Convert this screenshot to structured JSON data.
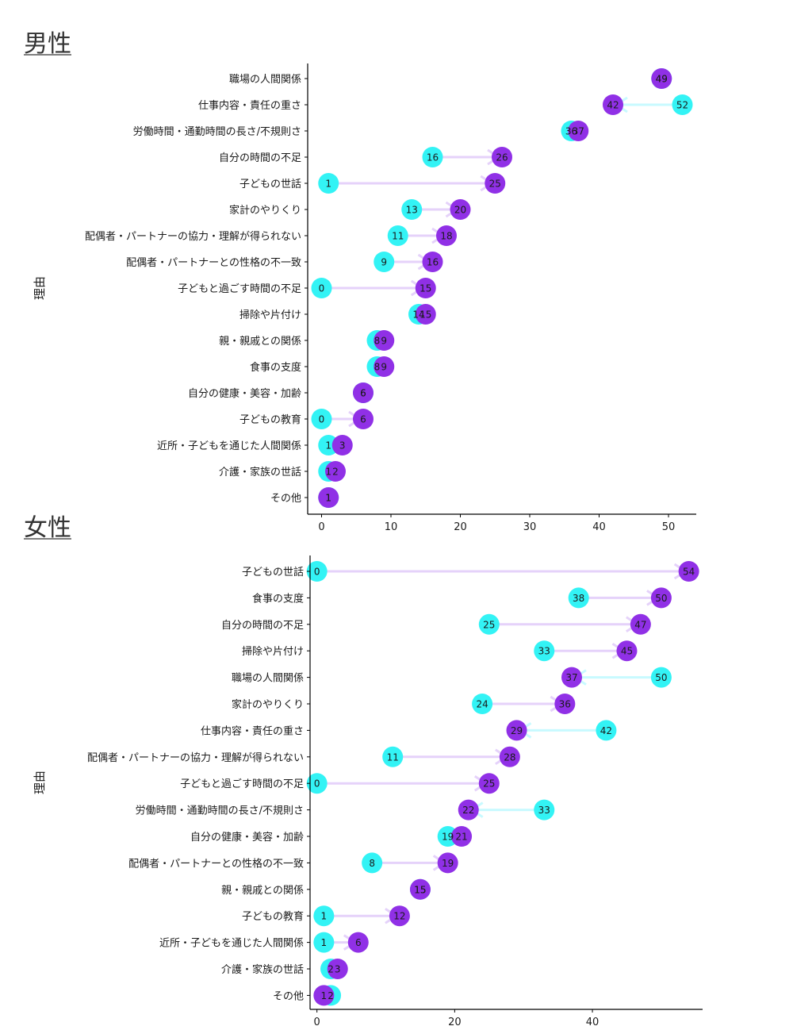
{
  "colors": {
    "before": "#33F3F5",
    "after": "#9030E6",
    "line_before_greater": "#C8FAFF",
    "line_after_greater": "#E5D2FA",
    "axis": "#000000"
  },
  "chart_data": [
    {
      "type": "dumbbell",
      "title": "男性",
      "ylabel": "理由",
      "xlabel": "",
      "xlim": [
        -2,
        54
      ],
      "xticks": [
        0,
        10,
        20,
        30,
        40,
        50
      ],
      "grid": false,
      "categories": [
        "職場の人間関係",
        "仕事内容・責任の重さ",
        "労働時間・通勤時間の長さ/不規則さ",
        "自分の時間の不足",
        "子どもの世話",
        "家計のやりくり",
        "配偶者・パートナーの協力・理解が得られない",
        "配偶者・パートナーとの性格の不一致",
        "子どもと過ごす時間の不足",
        "掃除や片付け",
        "親・親戚との関係",
        "食事の支度",
        "自分の健康・美容・加齢",
        "子どもの教育",
        "近所・子どもを通じた人間関係",
        "介護・家族の世話",
        "その他"
      ],
      "series": [
        {
          "values": [
            49,
            52,
            36,
            16,
            1,
            13,
            11,
            9,
            0,
            14,
            8,
            8,
            6,
            0,
            1,
            1,
            1
          ]
        },
        {
          "values": [
            49,
            42,
            37,
            26,
            25,
            20,
            18,
            16,
            15,
            15,
            9,
            9,
            6,
            6,
            3,
            2,
            1
          ]
        }
      ]
    },
    {
      "type": "dumbbell",
      "title": "女性",
      "ylabel": "理由",
      "xlabel": "",
      "xlim": [
        -1,
        56
      ],
      "xticks": [
        0,
        20,
        40
      ],
      "grid": false,
      "categories": [
        "子どもの世話",
        "食事の支度",
        "自分の時間の不足",
        "掃除や片付け",
        "職場の人間関係",
        "家計のやりくり",
        "仕事内容・責任の重さ",
        "配偶者・パートナーの協力・理解が得られない",
        "子どもと過ごす時間の不足",
        "労働時間・通勤時間の長さ/不規則さ",
        "自分の健康・美容・加齢",
        "配偶者・パートナーとの性格の不一致",
        "親・親戚との関係",
        "子どもの教育",
        "近所・子どもを通じた人間関係",
        "介護・家族の世話",
        "その他"
      ],
      "series": [
        {
          "values": [
            0,
            38,
            25,
            33,
            50,
            24,
            42,
            11,
            0,
            33,
            19,
            8,
            15,
            1,
            1,
            2,
            2
          ]
        },
        {
          "values": [
            54,
            50,
            47,
            45,
            37,
            36,
            29,
            28,
            25,
            22,
            21,
            19,
            15,
            12,
            6,
            3,
            1
          ]
        }
      ]
    }
  ]
}
